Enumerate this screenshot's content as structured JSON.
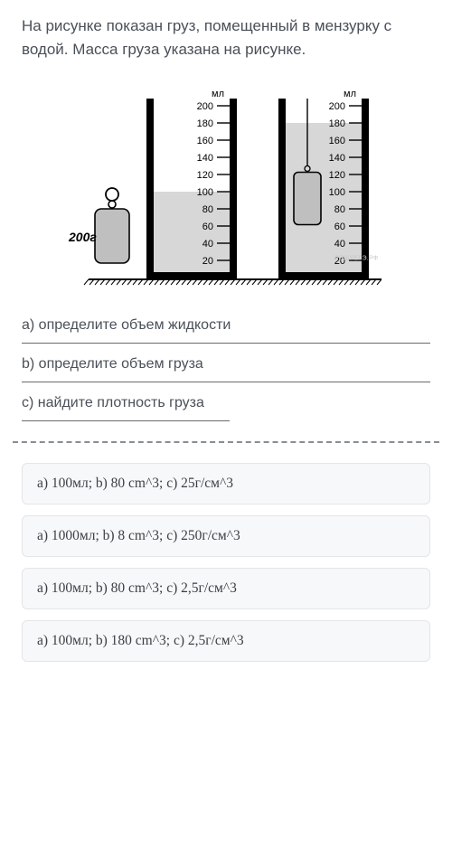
{
  "question": {
    "text": "На рисунке показан груз, помещенный в мензурку с водой. Масса груза указана на рисунке."
  },
  "figure": {
    "unit_label": "мл",
    "mass_label": "200г",
    "watermark": "РЕШУЕГЭ.РФ",
    "scale_ticks": [
      200,
      180,
      160,
      140,
      120,
      100,
      80,
      60,
      40,
      20
    ],
    "cylinder1": {
      "water_level_ml": 100
    },
    "cylinder2": {
      "water_level_ml": 180
    },
    "colors": {
      "water_fill": "#d7d7d7",
      "weight_fill": "#bfbfbf",
      "stroke": "#000000",
      "background": "#ffffff",
      "watermark": "#c7c7c7"
    },
    "stroke_width": 1.6,
    "tick_fontsize": 11,
    "mass_fontsize": 14,
    "unit_fontsize": 11
  },
  "tasks": {
    "a": "а) определите объем жидкости",
    "b": "b) определите объем груза",
    "c": "с) найдите плотность груза"
  },
  "options": [
    "a) 100мл; b) 80 cm^3; c) 25г/см^3",
    "a) 1000мл; b) 8 cm^3; c) 250г/см^3",
    "a) 100мл; b) 80 cm^3; c) 2,5г/см^3",
    "a) 100мл; b) 180 cm^3; c) 2,5г/см^3"
  ]
}
